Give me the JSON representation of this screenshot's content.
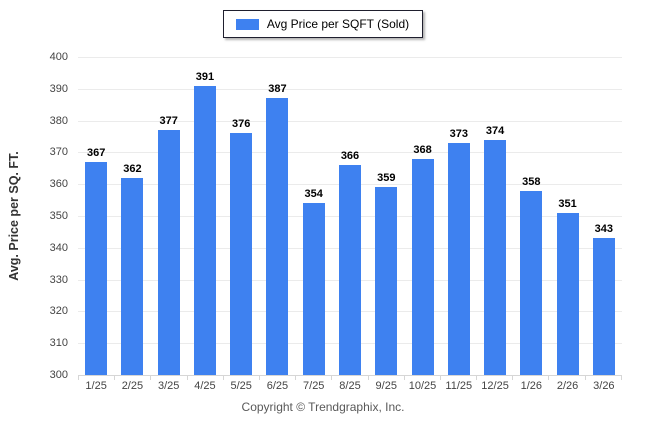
{
  "legend": {
    "label": "Avg Price per SQFT (Sold)",
    "swatch_color": "#3e81f0"
  },
  "footer": {
    "text": "Copyright © Trendgraphix, Inc."
  },
  "chart_data": {
    "type": "bar",
    "title": "",
    "xlabel": "",
    "ylabel": "Avg. Price per SQ. FT.",
    "categories": [
      "1/25",
      "2/25",
      "3/25",
      "4/25",
      "5/25",
      "6/25",
      "7/25",
      "8/25",
      "9/25",
      "10/25",
      "11/25",
      "12/25",
      "1/26",
      "2/26",
      "3/26"
    ],
    "series": [
      {
        "name": "Avg Price per SQFT (Sold)",
        "values": [
          367,
          362,
          377,
          391,
          376,
          387,
          354,
          366,
          359,
          368,
          373,
          374,
          358,
          351,
          343
        ]
      }
    ],
    "ylim": [
      300,
      400
    ],
    "ytick_step": 10,
    "grid": true,
    "legend_position": "top-center",
    "bar_color": "#3e81f0",
    "value_labels": true
  }
}
